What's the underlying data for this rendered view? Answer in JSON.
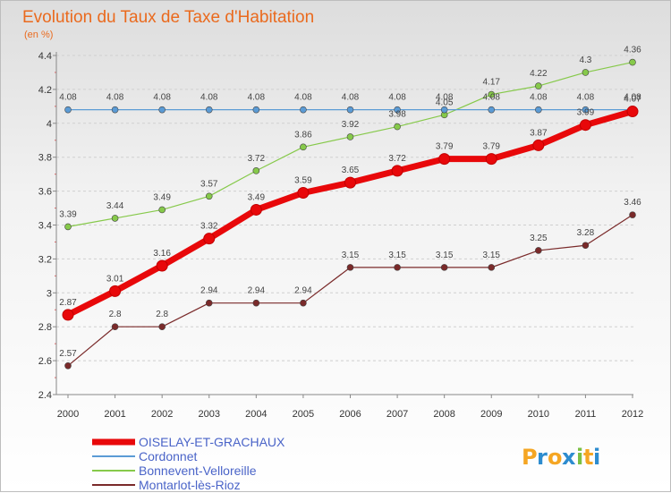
{
  "chart_data": {
    "type": "line",
    "title": "Evolution du Taux de Taxe d'Habitation",
    "subtitle": "(en %)",
    "xlabel": "",
    "ylabel": "",
    "categories": [
      "2000",
      "2001",
      "2002",
      "2003",
      "2004",
      "2005",
      "2006",
      "2007",
      "2008",
      "2009",
      "2010",
      "2011",
      "2012"
    ],
    "ylim": [
      2.4,
      4.4
    ],
    "yticks": [
      2.4,
      2.6,
      2.8,
      3,
      3.2,
      3.4,
      3.6,
      3.8,
      4,
      4.2,
      4.4
    ],
    "ytick_labels": [
      "2.4",
      "2.6",
      "2.8",
      "3",
      "3.2",
      "3.4",
      "3.6",
      "3.8",
      "4",
      "4.2",
      "4.4"
    ],
    "grid": "horizontal dashed",
    "legend_position": "bottom-left",
    "series": [
      {
        "name": "OISELAY-ET-GRACHAUX",
        "color": "#e8080a",
        "values": [
          2.87,
          3.01,
          3.16,
          3.32,
          3.49,
          3.59,
          3.65,
          3.72,
          3.79,
          3.79,
          3.87,
          3.99,
          4.07
        ],
        "labels": [
          "2.87",
          "3.01",
          "3.16",
          "3.32",
          "3.49",
          "3.59",
          "3.65",
          "3.72",
          "3.79",
          "3.79",
          "3.87",
          "3.99",
          "4.07"
        ]
      },
      {
        "name": "Cordonnet",
        "color": "#5b9bd5",
        "values": [
          4.08,
          4.08,
          4.08,
          4.08,
          4.08,
          4.08,
          4.08,
          4.08,
          4.08,
          4.08,
          4.08,
          4.08,
          4.08
        ],
        "labels": [
          "4.08",
          "4.08",
          "4.08",
          "4.08",
          "4.08",
          "4.08",
          "4.08",
          "4.08",
          "4.08",
          "4.08",
          "4.08",
          "4.08",
          "4.08"
        ]
      },
      {
        "name": "Bonnevent-Velloreille",
        "color": "#86c94a",
        "values": [
          3.39,
          3.44,
          3.49,
          3.57,
          3.72,
          3.86,
          3.92,
          3.98,
          4.05,
          4.17,
          4.22,
          4.3,
          4.36
        ],
        "labels": [
          "3.39",
          "3.44",
          "3.49",
          "3.57",
          "3.72",
          "3.86",
          "3.92",
          "3.98",
          "4.05",
          "4.17",
          "4.22",
          "4.3",
          "4.36"
        ]
      },
      {
        "name": "Montarlot-lès-Rioz",
        "color": "#7a2a2a",
        "values": [
          2.57,
          2.8,
          2.8,
          2.94,
          2.94,
          2.94,
          3.15,
          3.15,
          3.15,
          3.15,
          3.25,
          3.28,
          3.46
        ],
        "labels": [
          "2.57",
          "2.8",
          "2.8",
          "2.94",
          "2.94",
          "2.94",
          "3.15",
          "3.15",
          "3.15",
          "3.15",
          "3.25",
          "3.28",
          "3.46"
        ]
      }
    ]
  },
  "branding": {
    "letters": [
      "P",
      "r",
      "o",
      "x",
      "i",
      "t",
      "i"
    ],
    "colors": [
      "#f5a623",
      "#2d8ccf",
      "#f5a623",
      "#2d8ccf",
      "#7bc043",
      "#f5a623",
      "#2d8ccf"
    ]
  }
}
